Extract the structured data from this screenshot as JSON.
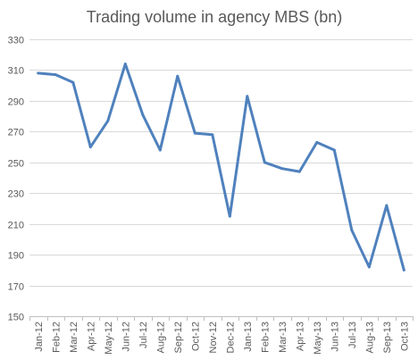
{
  "chart_data": {
    "type": "line",
    "title": "Trading volume in agency MBS (bn)",
    "xlabel": "",
    "ylabel": "",
    "categories": [
      "Jan-12",
      "Feb-12",
      "Mar-12",
      "Apr-12",
      "May-12",
      "Jun-12",
      "Jul-12",
      "Aug-12",
      "Sep-12",
      "Oct-12",
      "Nov-12",
      "Dec-12",
      "Jan-13",
      "Feb-13",
      "Mar-13",
      "Apr-13",
      "May-13",
      "Jun-13",
      "Jul-13",
      "Aug-13",
      "Sep-13",
      "Oct-13"
    ],
    "series": [
      {
        "values": [
          308,
          307,
          302,
          260,
          277,
          314,
          281,
          258,
          306,
          269,
          268,
          215,
          293,
          250,
          246,
          244,
          263,
          258,
          206,
          182,
          222,
          180
        ],
        "color": "#4f81bd"
      }
    ],
    "ylim": [
      150,
      330
    ],
    "yticks": [
      150,
      170,
      190,
      210,
      230,
      250,
      270,
      290,
      310,
      330
    ],
    "grid": true,
    "legend": "none"
  }
}
